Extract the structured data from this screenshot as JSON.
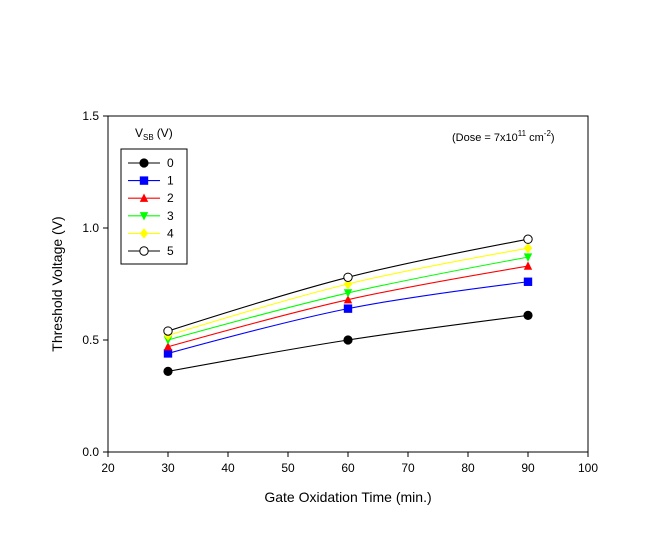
{
  "chart_data": {
    "type": "line",
    "xlabel": "Gate Oxidation Time (min.)",
    "ylabel": "Threshold Voltage (V)",
    "xlim": [
      20,
      100
    ],
    "ylim": [
      0.0,
      1.5
    ],
    "x_ticks": [
      "20",
      "30",
      "40",
      "50",
      "60",
      "70",
      "80",
      "90",
      "100"
    ],
    "y_ticks": [
      "0.0",
      "0.5",
      "1.0",
      "1.5"
    ],
    "grid": false,
    "legend_title": {
      "main": "V",
      "sub": "SB",
      "unit": "(V)"
    },
    "legend_position": "top-left",
    "annotation": {
      "text": "(Dose = 7x10",
      "sup1": "11",
      "text2": " cm",
      "sup2": "-2",
      "text3": ")"
    },
    "x": [
      30,
      60,
      90
    ],
    "series": [
      {
        "name": "0",
        "values": [
          0.36,
          0.5,
          0.61
        ],
        "color": "#000000",
        "marker": "circle-filled"
      },
      {
        "name": "1",
        "values": [
          0.44,
          0.64,
          0.76
        ],
        "color": "#0000ff",
        "marker": "square"
      },
      {
        "name": "2",
        "values": [
          0.47,
          0.68,
          0.83
        ],
        "color": "#ff0000",
        "marker": "triangle-up"
      },
      {
        "name": "3",
        "values": [
          0.5,
          0.71,
          0.87
        ],
        "color": "#00ff00",
        "marker": "triangle-down"
      },
      {
        "name": "4",
        "values": [
          0.52,
          0.75,
          0.91
        ],
        "color": "#ffff00",
        "marker": "diamond"
      },
      {
        "name": "5",
        "values": [
          0.54,
          0.78,
          0.95
        ],
        "color": "#000000",
        "marker": "circle-open"
      }
    ]
  }
}
